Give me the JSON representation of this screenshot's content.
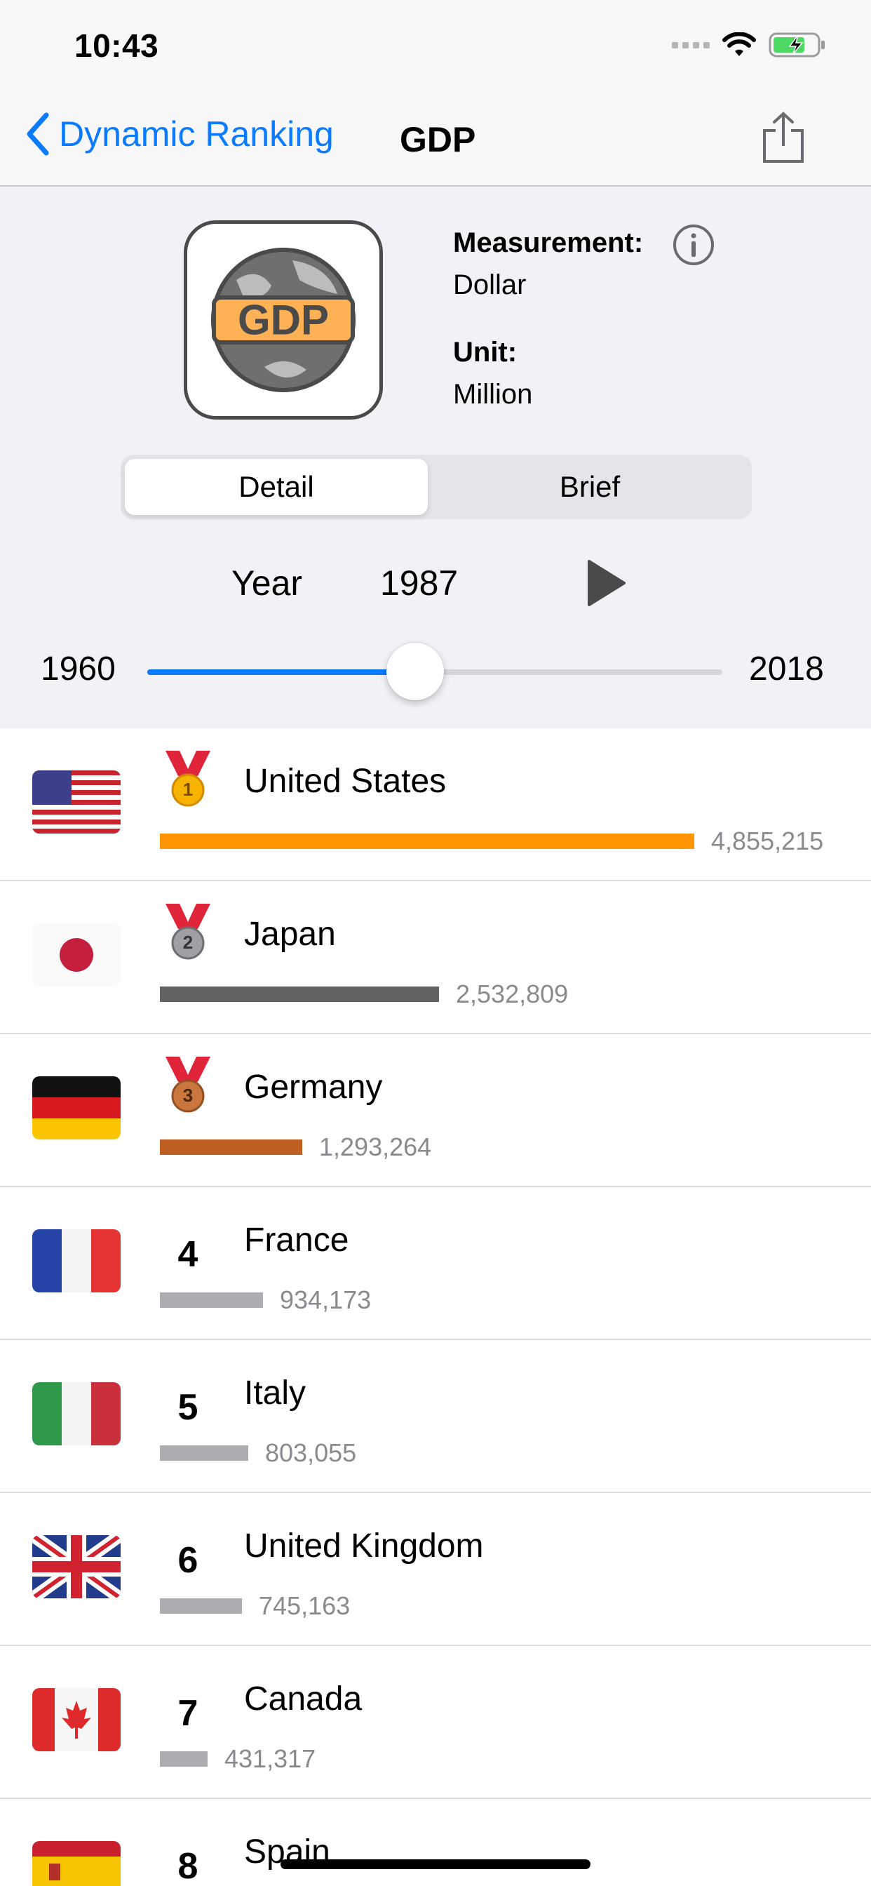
{
  "status_bar": {
    "time": "10:43"
  },
  "nav": {
    "back_label": "Dynamic Ranking",
    "title": "GDP"
  },
  "header": {
    "logo_text": "GDP",
    "measurement_label": "Measurement:",
    "measurement_value": "Dollar",
    "unit_label": "Unit:",
    "unit_value": "Million"
  },
  "segmented": {
    "detail": "Detail",
    "brief": "Brief",
    "selected": "Detail"
  },
  "year": {
    "label": "Year",
    "value": "1987"
  },
  "slider": {
    "min": "1960",
    "max": "2018",
    "value": 1987
  },
  "rankings": [
    {
      "rank": "1",
      "medal": "gold",
      "country": "United States",
      "value": "4,855,215",
      "gdp": 4855215,
      "bar_color": "#ff9500"
    },
    {
      "rank": "2",
      "medal": "silver",
      "country": "Japan",
      "value": "2,532,809",
      "gdp": 2532809,
      "bar_color": "#636366"
    },
    {
      "rank": "3",
      "medal": "bronze",
      "country": "Germany",
      "value": "1,293,264",
      "gdp": 1293264,
      "bar_color": "#bf5f22"
    },
    {
      "rank": "4",
      "medal": "",
      "country": "France",
      "value": "934,173",
      "gdp": 934173,
      "bar_color": "#aeaeb2"
    },
    {
      "rank": "5",
      "medal": "",
      "country": "Italy",
      "value": "803,055",
      "gdp": 803055,
      "bar_color": "#aeaeb2"
    },
    {
      "rank": "6",
      "medal": "",
      "country": "United Kingdom",
      "value": "745,163",
      "gdp": 745163,
      "bar_color": "#aeaeb2"
    },
    {
      "rank": "7",
      "medal": "",
      "country": "Canada",
      "value": "431,317",
      "gdp": 431317,
      "bar_color": "#aeaeb2"
    },
    {
      "rank": "8",
      "medal": "",
      "country": "Spain",
      "value": "",
      "gdp": 0,
      "bar_color": "#aeaeb2"
    }
  ],
  "icons": {
    "back": "chevron-left-icon",
    "share": "share-icon",
    "info": "info-icon",
    "play": "play-icon",
    "medal": "medal-icon"
  },
  "colors": {
    "accent": "#0a7aff",
    "gold": "#ff9500",
    "silver": "#636366",
    "bronze": "#bf5f22",
    "bar_default": "#aeaeb2"
  }
}
